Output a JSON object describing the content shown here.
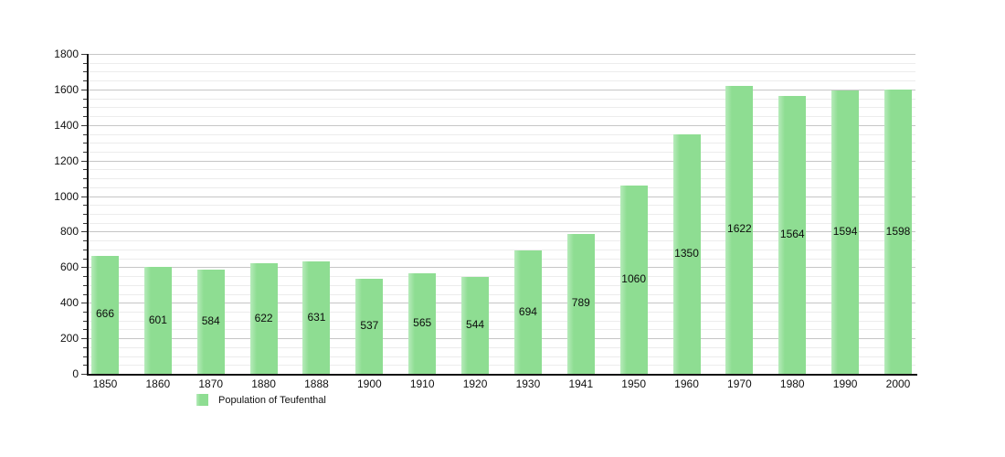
{
  "chart_data": {
    "type": "bar",
    "title": "",
    "xlabel": "",
    "ylabel": "",
    "categories": [
      "1850",
      "1860",
      "1870",
      "1880",
      "1888",
      "1900",
      "1910",
      "1920",
      "1930",
      "1941",
      "1950",
      "1960",
      "1970",
      "1980",
      "1990",
      "2000"
    ],
    "values": [
      666,
      601,
      584,
      622,
      631,
      537,
      565,
      544,
      694,
      789,
      1060,
      1350,
      1622,
      1564,
      1594,
      1598
    ],
    "ylim": [
      0,
      1800
    ],
    "y_major_step": 200,
    "y_minor_step": 50,
    "grid": "horizontal-on",
    "legend_position": "bottom-left",
    "legend": {
      "label": "Population of Teufenthal"
    },
    "colors": {
      "bar_fill": "#8edd92",
      "bar_fill_light_edge": "#b6ebba",
      "minor_gridline": "#ececec",
      "major_gridline": "#c6c6c6",
      "axis": "#141414",
      "text": "#111111",
      "background": "#ffffff"
    }
  }
}
